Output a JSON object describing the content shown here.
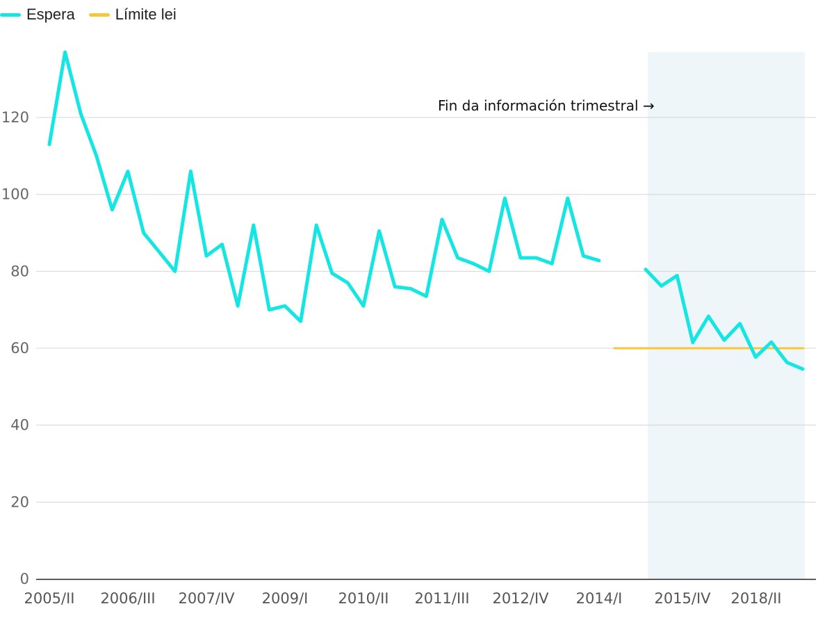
{
  "legend": {
    "espera": "Espera",
    "limite": "Límite lei"
  },
  "colors": {
    "espera": "#14e6e3",
    "limite": "#f8c63c",
    "shade": "#eef6fa",
    "grid": "#d4d4d4",
    "axis": "#222222"
  },
  "chart_data": {
    "type": "line",
    "ylim": [
      0,
      137
    ],
    "yticks": [
      0,
      20,
      40,
      60,
      80,
      100,
      120
    ],
    "grid": true,
    "legend_position": "top-left",
    "x_tick_labels": [
      "2005/II",
      "2006/III",
      "2007/IV",
      "2009/I",
      "2010/II",
      "2011/III",
      "2012/IV",
      "2014/I",
      "2015/IV",
      "2018/II"
    ],
    "annotation": "Fin da información trimestral →",
    "series": [
      {
        "name": "Espera",
        "segment": "trimestral",
        "x": [
          "2005/II",
          "2005/III",
          "2005/IV",
          "2006/I",
          "2006/II",
          "2006/III",
          "2006/IV",
          "2007/I",
          "2007/II",
          "2007/III",
          "2007/IV",
          "2008/I",
          "2008/II",
          "2008/III",
          "2008/IV",
          "2009/I",
          "2009/II",
          "2009/III",
          "2009/IV",
          "2010/I",
          "2010/II",
          "2010/III",
          "2010/IV",
          "2011/I",
          "2011/II",
          "2011/III",
          "2011/IV",
          "2012/I",
          "2012/II",
          "2012/III",
          "2012/IV",
          "2013/I",
          "2013/II",
          "2013/III",
          "2013/IV",
          "2014/I"
        ],
        "values": [
          113,
          137,
          121,
          110,
          96,
          106,
          90,
          85,
          80,
          106,
          84,
          87,
          71,
          92,
          70,
          71,
          67,
          92,
          79.5,
          77,
          71,
          90.5,
          76,
          75.5,
          73.5,
          93.5,
          83.5,
          82,
          80,
          99,
          83.5,
          83.5,
          82,
          99,
          84,
          82.8
        ]
      },
      {
        "name": "Espera",
        "segment": "anual",
        "values": [
          80.5,
          76.2,
          78.9,
          61.5,
          68.3,
          62.1,
          66.4,
          57.7,
          61.6,
          56.3,
          54.6
        ]
      },
      {
        "name": "Límite lei",
        "values": [
          60,
          60
        ]
      }
    ]
  }
}
